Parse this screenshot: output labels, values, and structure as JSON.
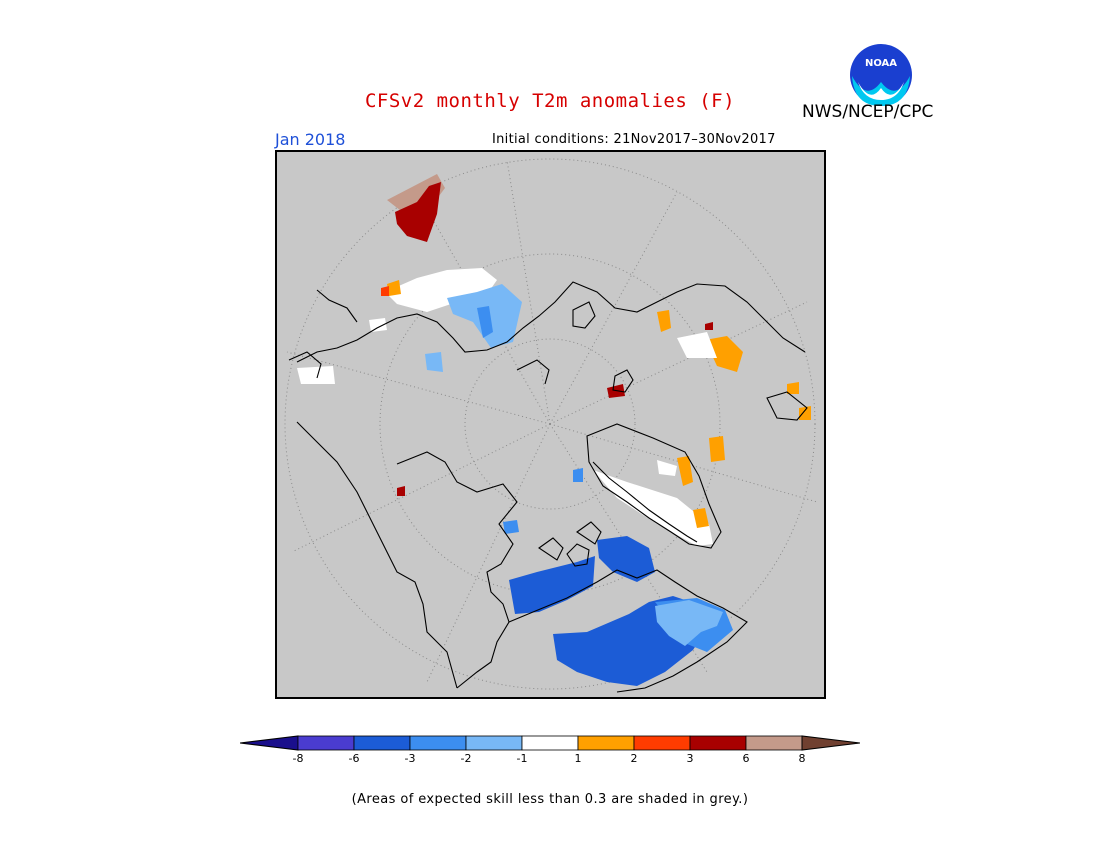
{
  "title": "CFSv2 monthly T2m anomalies (F)",
  "organization": "NWS/NCEP/CPC",
  "logo_text": "NOAA",
  "valid_month": "Jan 2018",
  "initial_conditions": "Initial conditions: 21Nov2017–30Nov2017",
  "footnote": "(Areas of expected skill less than 0.3 are shaded in grey.)",
  "colors": {
    "title": "#d60000",
    "month": "#1e50d8",
    "no_skill_grey": "#c8c8c8"
  },
  "legend": {
    "colors": [
      "#1a0f8c",
      "#4a3cd0",
      "#1c5cd6",
      "#3c8ef0",
      "#78b8f6",
      "#ffffff",
      "#ffa000",
      "#ff3c00",
      "#a80000",
      "#c49a8a",
      "#704030"
    ],
    "ticks": [
      "-8",
      "-6",
      "-3",
      "-2",
      "-1",
      "1",
      "2",
      "3",
      "6",
      "8"
    ]
  }
}
